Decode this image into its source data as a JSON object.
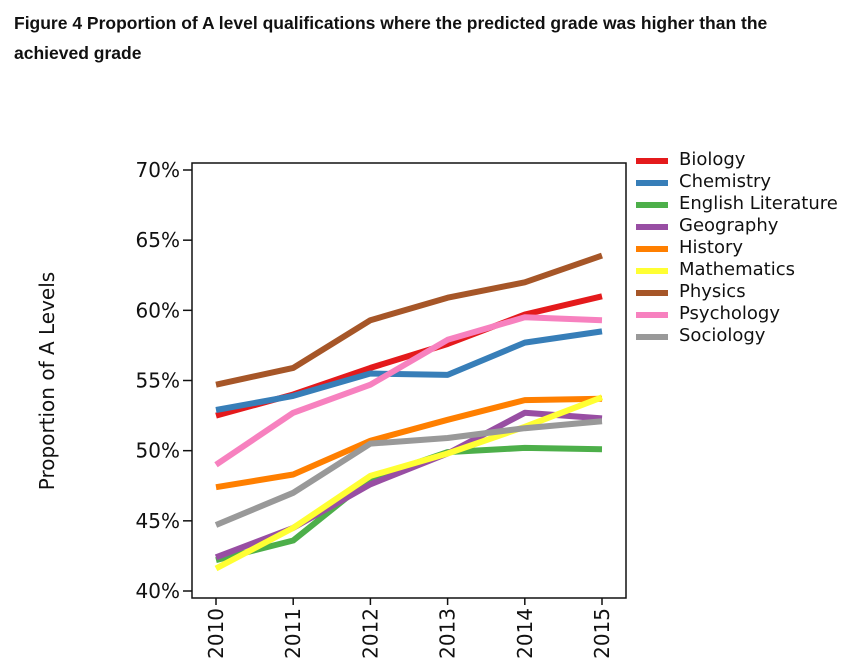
{
  "figure_title": "Figure 4 Proportion of A level qualifications where the predicted grade was higher than the achieved grade",
  "chart_data": {
    "type": "line",
    "title": "Figure 4 Proportion of A level qualifications where the predicted grade was higher than the achieved grade",
    "xlabel": "",
    "ylabel": "Proportion of A Levels",
    "x": [
      "2010",
      "2011",
      "2012",
      "2013",
      "2014",
      "2015"
    ],
    "ylim": [
      40,
      70
    ],
    "yticks": [
      "40%",
      "45%",
      "50%",
      "55%",
      "60%",
      "65%",
      "70%"
    ],
    "grid": false,
    "legend_position": "right",
    "series": [
      {
        "name": "Biology",
        "color": "#e41a1c",
        "values": [
          52.5,
          54.0,
          55.9,
          57.6,
          59.7,
          61.0
        ]
      },
      {
        "name": "Chemistry",
        "color": "#377eb8",
        "values": [
          52.9,
          53.9,
          55.5,
          55.4,
          57.7,
          58.5
        ]
      },
      {
        "name": "English Literature",
        "color": "#4daf4a",
        "values": [
          42.2,
          43.6,
          48.0,
          49.9,
          50.2,
          50.1
        ]
      },
      {
        "name": "Geography",
        "color": "#984ea3",
        "values": [
          42.4,
          44.5,
          47.6,
          49.8,
          52.7,
          52.3
        ]
      },
      {
        "name": "History",
        "color": "#ff7f00",
        "values": [
          47.4,
          48.3,
          50.7,
          52.2,
          53.6,
          53.7
        ]
      },
      {
        "name": "Mathematics",
        "color": "#ffff33",
        "values": [
          41.6,
          44.5,
          48.2,
          49.8,
          51.7,
          53.8
        ]
      },
      {
        "name": "Physics",
        "color": "#a65628",
        "values": [
          54.7,
          55.9,
          59.3,
          60.9,
          62.0,
          63.9
        ]
      },
      {
        "name": "Psychology",
        "color": "#f781bf",
        "values": [
          49.0,
          52.7,
          54.7,
          57.9,
          59.5,
          59.3
        ]
      },
      {
        "name": "Sociology",
        "color": "#999999",
        "values": [
          44.7,
          47.0,
          50.5,
          50.9,
          51.6,
          52.1
        ]
      }
    ]
  }
}
